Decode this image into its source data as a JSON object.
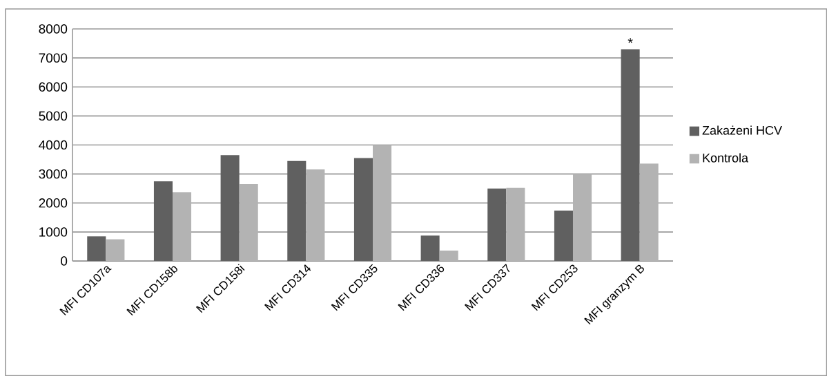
{
  "chart_data": {
    "type": "bar",
    "categories": [
      "MFI CD107a",
      "MFI CD158b",
      "MFI CD158i",
      "MFI CD314",
      "MFI CD335",
      "MFI CD336",
      "MFI CD337",
      "MFI CD253",
      "MFI granzym B"
    ],
    "series": [
      {
        "name": "Zakażeni HCV",
        "color": "#606060",
        "values": [
          850,
          2750,
          3650,
          3450,
          3550,
          880,
          2500,
          1740,
          7300
        ]
      },
      {
        "name": "Kontrola",
        "color": "#b3b3b3",
        "values": [
          750,
          2370,
          2660,
          3160,
          4000,
          360,
          2520,
          3000,
          3360
        ]
      }
    ],
    "ylim": [
      0,
      8000
    ],
    "yticks": [
      0,
      1000,
      2000,
      3000,
      4000,
      5000,
      6000,
      7000,
      8000
    ],
    "grid": "y",
    "legend": "right",
    "annotations": [
      {
        "text": "*",
        "x": "MFI granzym B",
        "y": 7300
      }
    ]
  }
}
